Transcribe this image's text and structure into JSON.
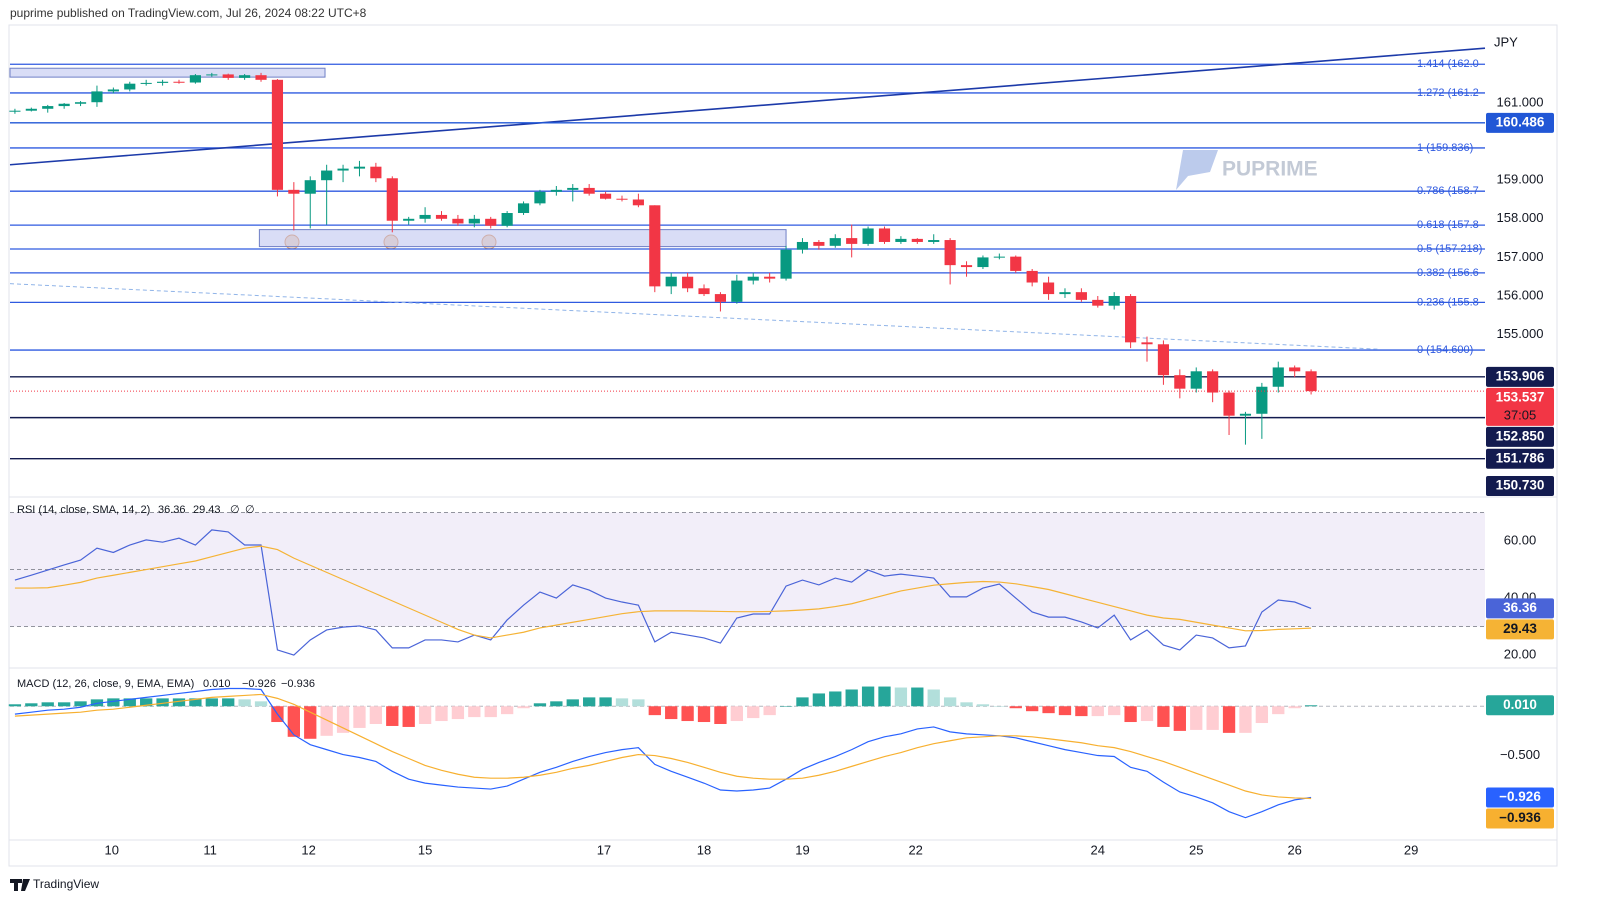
{
  "header": "puprime published on TradingView.com, Jul 26, 2024 08:22 UTC+8",
  "watermark": "PUPRIME",
  "footer": "TradingView",
  "chart_data": [
    {
      "type": "candlestick",
      "currency": "JPY",
      "xlim": [
        -0.3,
        89.6
      ],
      "xticks": [
        {
          "value": 5.9,
          "label": "10"
        },
        {
          "value": 11.9,
          "label": "11"
        },
        {
          "value": 17.9,
          "label": "12"
        },
        {
          "value": 25,
          "label": "15"
        },
        {
          "value": 35.9,
          "label": "17"
        },
        {
          "value": 42,
          "label": "18"
        },
        {
          "value": 48,
          "label": "19"
        },
        {
          "value": 54.9,
          "label": "22"
        },
        {
          "value": 66,
          "label": "24"
        },
        {
          "value": 72,
          "label": "25"
        },
        {
          "value": 78,
          "label": "26"
        },
        {
          "value": 85.1,
          "label": "29"
        }
      ],
      "ylim": [
        150.82,
        163.02
      ],
      "yticks": [
        {
          "value": 155,
          "label": "155.000"
        },
        {
          "value": 156,
          "label": "156.000"
        },
        {
          "value": 157,
          "label": "157.000"
        },
        {
          "value": 158,
          "label": "158.000"
        },
        {
          "value": 159,
          "label": "159.000"
        },
        {
          "value": 161,
          "label": "161.000"
        }
      ],
      "up_color": "#089981",
      "down_color": "#f23645",
      "open": [
        160.78,
        160.8,
        160.85,
        160.92,
        160.98,
        161.02,
        161.3,
        161.35,
        161.5,
        161.52,
        161.55,
        161.53,
        161.72,
        161.74,
        161.65,
        161.72,
        161.6,
        158.75,
        158.65,
        159.0,
        159.25,
        159.3,
        159.35,
        159.05,
        157.95,
        158.0,
        158.1,
        158.0,
        157.88,
        158.0,
        157.82,
        158.15,
        158.4,
        158.7,
        158.75,
        158.8,
        158.65,
        158.52,
        158.5,
        158.35,
        156.25,
        156.5,
        156.2,
        156.05,
        155.85,
        156.4,
        156.5,
        156.45,
        157.2,
        157.4,
        157.3,
        157.5,
        157.35,
        157.75,
        157.4,
        157.48,
        157.4,
        157.45,
        156.8,
        156.75,
        157.0,
        157.02,
        156.65,
        156.35,
        156.05,
        156.1,
        155.9,
        155.75,
        156.0,
        154.8,
        154.75,
        153.95,
        153.6,
        154.05,
        153.5,
        152.9,
        152.95,
        153.65,
        154.15,
        154.05
      ],
      "high": [
        160.85,
        160.88,
        160.95,
        161.0,
        161.05,
        161.45,
        161.4,
        161.55,
        161.6,
        161.6,
        161.6,
        161.75,
        161.78,
        161.76,
        161.75,
        161.78,
        161.62,
        158.95,
        159.1,
        159.4,
        159.4,
        159.5,
        159.45,
        159.1,
        158.05,
        158.3,
        158.2,
        158.1,
        158.1,
        158.05,
        158.2,
        158.45,
        158.75,
        158.85,
        158.9,
        158.9,
        158.7,
        158.6,
        158.65,
        158.35,
        156.6,
        156.6,
        156.3,
        156.1,
        156.55,
        156.6,
        156.6,
        157.3,
        157.5,
        157.45,
        157.6,
        157.85,
        157.8,
        157.8,
        157.55,
        157.5,
        157.6,
        157.5,
        156.9,
        157.05,
        157.1,
        157.05,
        156.7,
        156.5,
        156.2,
        156.2,
        156.0,
        156.1,
        156.05,
        154.95,
        154.85,
        154.1,
        154.15,
        154.1,
        153.55,
        153.0,
        153.75,
        154.3,
        154.2,
        154.1
      ],
      "low": [
        160.72,
        160.78,
        160.75,
        160.85,
        160.92,
        160.9,
        161.25,
        161.3,
        161.45,
        161.45,
        161.5,
        161.5,
        161.68,
        161.6,
        161.6,
        161.55,
        158.58,
        157.7,
        157.75,
        157.85,
        158.95,
        159.1,
        158.95,
        157.65,
        157.85,
        157.9,
        157.95,
        157.82,
        157.78,
        157.75,
        157.78,
        158.1,
        158.35,
        158.6,
        158.45,
        158.6,
        158.5,
        158.45,
        158.3,
        156.1,
        156.05,
        156.1,
        156.0,
        155.6,
        155.8,
        156.3,
        156.35,
        156.4,
        157.1,
        157.2,
        157.25,
        157.0,
        157.3,
        157.35,
        157.35,
        157.35,
        157.35,
        156.3,
        156.5,
        156.7,
        156.95,
        156.6,
        156.25,
        155.9,
        155.95,
        155.85,
        155.7,
        155.65,
        154.65,
        154.3,
        153.7,
        153.35,
        153.5,
        153.25,
        152.4,
        152.15,
        152.3,
        153.5,
        153.9,
        153.45
      ],
      "close": [
        160.8,
        160.85,
        160.92,
        160.98,
        161.02,
        161.3,
        161.35,
        161.5,
        161.52,
        161.55,
        161.53,
        161.72,
        161.74,
        161.65,
        161.72,
        161.6,
        158.75,
        158.65,
        159.0,
        159.25,
        159.3,
        159.35,
        159.05,
        157.95,
        158.0,
        158.1,
        158.0,
        157.88,
        158.0,
        157.82,
        158.15,
        158.4,
        158.7,
        158.75,
        158.8,
        158.65,
        158.52,
        158.5,
        158.35,
        156.25,
        156.5,
        156.2,
        156.05,
        155.85,
        156.4,
        156.5,
        156.45,
        157.2,
        157.4,
        157.3,
        157.5,
        157.35,
        157.75,
        157.4,
        157.48,
        157.4,
        157.45,
        156.8,
        156.75,
        157.0,
        157.02,
        156.65,
        156.35,
        156.05,
        156.1,
        155.9,
        155.75,
        156.0,
        154.8,
        154.75,
        153.95,
        153.6,
        154.05,
        153.5,
        152.9,
        152.95,
        153.65,
        154.15,
        154.05,
        153.537
      ],
      "countdown": "37:05",
      "fib_color": "#2f5ae0",
      "fib_levels": [
        {
          "value": 162.004,
          "label": "1.414 (162.0"
        },
        {
          "value": 161.26,
          "label": "1.272 (161.2"
        },
        {
          "value": 159.836,
          "label": "1 (159.836)"
        },
        {
          "value": 158.715,
          "label": "0.786 (158.7"
        },
        {
          "value": 157.836,
          "label": "0.618 (157.8"
        },
        {
          "value": 157.218,
          "label": "0.5 (157.218)"
        },
        {
          "value": 156.6,
          "label": "0.382 (156.6"
        },
        {
          "value": 155.836,
          "label": "0.236 (155.8"
        },
        {
          "value": 154.6,
          "label": "0 (154.600)"
        }
      ],
      "price_lines": [
        {
          "value": 160.486,
          "color": "#2157d6"
        },
        {
          "value": 153.906,
          "color": "#131b4f"
        },
        {
          "value": 152.85,
          "label": "152.850",
          "color": "#131b4f"
        },
        {
          "value": 151.786,
          "color": "#131b4f"
        },
        {
          "value": 150.73,
          "label": "150.730",
          "color": "#131b4f"
        }
      ],
      "trend_lines": [
        {
          "x": [
            -0.3,
            89.6
          ],
          "y": [
            159.4,
            162.42
          ],
          "color": "#1c3aa9",
          "dashed": false
        },
        {
          "x": [
            -0.3,
            83.2
          ],
          "y": [
            156.32,
            154.62
          ],
          "color": "#90b4e8",
          "dashed": true
        }
      ],
      "zone_color": "#b9c1ee",
      "zones": [
        {
          "x": [
            -0.3,
            18.9
          ],
          "y": [
            161.67,
            161.9
          ]
        },
        {
          "x": [
            14.9,
            47
          ],
          "y": [
            157.28,
            157.72
          ]
        }
      ]
    },
    {
      "type": "line",
      "title": "RSI (14, close, SMA, 14, 2)",
      "flags": [
        "∅",
        "∅"
      ],
      "ylim": [
        15.8,
        75.1
      ],
      "yticks": [
        {
          "value": 60,
          "label": "60.00"
        },
        {
          "value": 40,
          "label": "40.00"
        },
        {
          "value": 20,
          "label": "20.00"
        }
      ],
      "levels": [
        70,
        50,
        30
      ],
      "band_color": "#7e57c2",
      "series": [
        {
          "color": "#4a64d8",
          "values": [
            46.3,
            48,
            49.8,
            51.6,
            53.3,
            57.5,
            56,
            58.6,
            60.4,
            59.6,
            61,
            58.6,
            63.9,
            63.2,
            58.6,
            58.6,
            21.8,
            20,
            25.3,
            28.8,
            29.8,
            30.2,
            28.8,
            22.5,
            22.5,
            25.3,
            25.3,
            24.6,
            27,
            25.3,
            32.3,
            37.5,
            42.1,
            40,
            44.6,
            42.8,
            40,
            38.6,
            37.5,
            24.6,
            28,
            27,
            26,
            24.2,
            33,
            34.4,
            34.4,
            44.2,
            46.3,
            44.6,
            47,
            45.6,
            49.8,
            47.7,
            48.4,
            47.7,
            47,
            40.4,
            40.4,
            43.5,
            44.9,
            40,
            35.1,
            33.3,
            33.3,
            31.6,
            29.5,
            34,
            25.3,
            28.8,
            23.5,
            21.8,
            27,
            26,
            22.5,
            23.2,
            35.1,
            39.3,
            38.6,
            36.36
          ]
        },
        {
          "color": "#f5b335",
          "values": [
            43.5,
            43.5,
            43.6,
            44.5,
            45.5,
            47,
            48,
            49,
            50,
            51,
            52,
            53,
            54.5,
            56,
            57.5,
            58.2,
            57,
            54,
            51.5,
            49,
            46.5,
            44,
            41.5,
            39,
            36.5,
            34,
            31.5,
            29,
            27,
            26,
            27,
            28,
            29.5,
            30.5,
            31.5,
            32.5,
            33.5,
            34.5,
            35.2,
            35.5,
            35.5,
            35.5,
            35.4,
            35.3,
            35.2,
            35.2,
            35.3,
            35.5,
            35.8,
            36.2,
            37,
            38,
            39.5,
            41,
            42.5,
            43.5,
            44.5,
            45,
            45.5,
            45.8,
            45.6,
            45,
            44,
            43,
            41.5,
            40,
            38.5,
            37,
            35.5,
            34,
            33,
            32.5,
            31.5,
            30.5,
            29.5,
            28.5,
            28.6,
            29,
            29.2,
            29.43
          ]
        }
      ]
    },
    {
      "type": "macd",
      "title": "MACD (12, 26, close, 9, EMA, EMA)",
      "ylim": [
        -1.357,
        0.378
      ],
      "yticks": [
        {
          "value": -0.5,
          "label": "−0.500"
        }
      ],
      "series": [
        {
          "type": "histogram",
          "colors": [
            "#26a69a",
            "#b2dfdb",
            "#ffcdd2",
            "#ff5252"
          ],
          "last_label": "0.010",
          "values": [
            0.02,
            0.03,
            0.04,
            0.04,
            0.05,
            0.07,
            0.08,
            0.08,
            0.08,
            0.08,
            0.08,
            0.08,
            0.08,
            0.08,
            0.07,
            0.05,
            -0.16,
            -0.31,
            -0.33,
            -0.3,
            -0.27,
            -0.22,
            -0.18,
            -0.2,
            -0.21,
            -0.18,
            -0.15,
            -0.13,
            -0.11,
            -0.11,
            -0.08,
            -0.02,
            0.03,
            0.05,
            0.07,
            0.09,
            0.09,
            0.08,
            0.07,
            -0.09,
            -0.13,
            -0.15,
            -0.16,
            -0.18,
            -0.15,
            -0.12,
            -0.09,
            0,
            0.09,
            0.13,
            0.15,
            0.17,
            0.2,
            0.2,
            0.19,
            0.19,
            0.17,
            0.09,
            0.04,
            0.02,
            0,
            -0.02,
            -0.05,
            -0.07,
            -0.09,
            -0.1,
            -0.1,
            -0.09,
            -0.16,
            -0.15,
            -0.21,
            -0.25,
            -0.24,
            -0.24,
            -0.27,
            -0.27,
            -0.17,
            -0.08,
            -0.02,
            0.01
          ]
        },
        {
          "type": "line",
          "color": "#2962ff",
          "last_label": "−0.926",
          "values": [
            -0.08,
            -0.06,
            -0.04,
            -0.03,
            -0.01,
            0.03,
            0.05,
            0.07,
            0.09,
            0.11,
            0.13,
            0.15,
            0.17,
            0.18,
            0.18,
            0.17,
            -0.08,
            -0.29,
            -0.39,
            -0.44,
            -0.49,
            -0.52,
            -0.56,
            -0.66,
            -0.74,
            -0.78,
            -0.8,
            -0.82,
            -0.83,
            -0.84,
            -0.81,
            -0.74,
            -0.67,
            -0.62,
            -0.56,
            -0.51,
            -0.47,
            -0.44,
            -0.42,
            -0.59,
            -0.66,
            -0.72,
            -0.78,
            -0.85,
            -0.86,
            -0.85,
            -0.83,
            -0.74,
            -0.64,
            -0.57,
            -0.51,
            -0.44,
            -0.36,
            -0.31,
            -0.28,
            -0.23,
            -0.21,
            -0.26,
            -0.28,
            -0.29,
            -0.3,
            -0.32,
            -0.36,
            -0.4,
            -0.44,
            -0.47,
            -0.5,
            -0.51,
            -0.62,
            -0.66,
            -0.77,
            -0.87,
            -0.92,
            -0.98,
            -1.07,
            -1.13,
            -1.07,
            -1.0,
            -0.95,
            -0.926
          ]
        },
        {
          "type": "line",
          "color": "#f7b030",
          "text_color": "#131722",
          "last_label": "−0.936",
          "values": [
            -0.1,
            -0.09,
            -0.08,
            -0.07,
            -0.06,
            -0.04,
            -0.03,
            -0.01,
            0.01,
            0.03,
            0.05,
            0.07,
            0.09,
            0.1,
            0.11,
            0.12,
            0.08,
            0.02,
            -0.06,
            -0.14,
            -0.22,
            -0.3,
            -0.38,
            -0.46,
            -0.53,
            -0.6,
            -0.65,
            -0.69,
            -0.72,
            -0.73,
            -0.73,
            -0.72,
            -0.7,
            -0.67,
            -0.63,
            -0.6,
            -0.56,
            -0.52,
            -0.49,
            -0.5,
            -0.53,
            -0.57,
            -0.62,
            -0.67,
            -0.71,
            -0.73,
            -0.74,
            -0.74,
            -0.73,
            -0.7,
            -0.66,
            -0.61,
            -0.56,
            -0.51,
            -0.47,
            -0.42,
            -0.38,
            -0.35,
            -0.32,
            -0.31,
            -0.3,
            -0.3,
            -0.31,
            -0.33,
            -0.35,
            -0.37,
            -0.4,
            -0.42,
            -0.46,
            -0.51,
            -0.56,
            -0.62,
            -0.68,
            -0.74,
            -0.8,
            -0.86,
            -0.9,
            -0.92,
            -0.93,
            -0.936
          ]
        }
      ]
    }
  ]
}
